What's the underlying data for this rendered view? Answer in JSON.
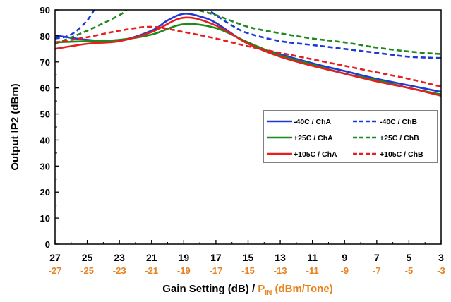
{
  "chart_data": {
    "type": "line",
    "title": "",
    "ylabel": "Output IP2 (dBm)",
    "xlabel": {
      "main": "Gain Setting (dB) / ",
      "sub_label_prefix": "P",
      "sub_label_subscript": "IN",
      "sub_label_suffix": " (dBm/Tone)"
    },
    "x_reversed": true,
    "xlim": [
      3,
      27
    ],
    "ylim": [
      0,
      90
    ],
    "x_ticks": [
      27,
      25,
      23,
      21,
      19,
      17,
      15,
      13,
      11,
      9,
      7,
      5,
      3
    ],
    "x_tick_labels": [
      "27",
      "25",
      "23",
      "21",
      "19",
      "17",
      "15",
      "13",
      "11",
      "9",
      "7",
      "5",
      "3"
    ],
    "x_secondary_tick_labels": [
      "-27",
      "-25",
      "-23",
      "-21",
      "-19",
      "-17",
      "-15",
      "-13",
      "-11",
      "-9",
      "-7",
      "-5",
      "-3"
    ],
    "y_ticks": [
      0,
      10,
      20,
      30,
      40,
      50,
      60,
      70,
      80,
      90
    ],
    "y_tick_labels": [
      "0",
      "10",
      "20",
      "30",
      "40",
      "50",
      "60",
      "70",
      "80",
      "90"
    ],
    "grid": false,
    "legend_position": "right-middle",
    "colors": {
      "secondary_axis_text": "#e8821e",
      "blue": "#1e3ad6",
      "green": "#1e8a1e",
      "red": "#e61e1e"
    },
    "series": [
      {
        "name": "-40C / ChA",
        "color": "#1e3ad6",
        "dash": false,
        "x": [
          27,
          25,
          23,
          21,
          20,
          19,
          18,
          17,
          15,
          13,
          11,
          9,
          7,
          5,
          3
        ],
        "y": [
          80.2,
          78.5,
          78.2,
          82,
          86,
          88.5,
          87.5,
          85,
          77,
          73,
          69.5,
          66.5,
          63.5,
          61,
          58.5
        ]
      },
      {
        "name": "-40C / ChB",
        "color": "#1e3ad6",
        "dash": true,
        "x": [
          27,
          26,
          25,
          24.3
        ],
        "y": [
          79,
          80.5,
          86,
          93
        ]
      },
      {
        "name": "-40C / ChB",
        "color": "#1e3ad6",
        "dash": true,
        "x": [
          17.7,
          17,
          16,
          15,
          13,
          11,
          9,
          7,
          5,
          3
        ],
        "y": [
          91,
          88,
          84,
          81,
          78,
          76.5,
          75,
          73.5,
          72,
          71.5
        ]
      },
      {
        "name": "+25C / ChA",
        "color": "#1e8a1e",
        "dash": false,
        "x": [
          27,
          25,
          23,
          21,
          19,
          17,
          15,
          13,
          11,
          9,
          7,
          5,
          3
        ],
        "y": [
          77.5,
          78,
          78.5,
          80.5,
          84.5,
          83,
          77.5,
          72.5,
          69,
          65.5,
          63,
          60,
          57.5
        ]
      },
      {
        "name": "+25C / ChB",
        "color": "#1e8a1e",
        "dash": true,
        "x": [
          27,
          25,
          23,
          22.5
        ],
        "y": [
          77,
          82,
          88,
          90.5
        ]
      },
      {
        "name": "+25C / ChB",
        "color": "#1e8a1e",
        "dash": true,
        "x": [
          18.5,
          17,
          15,
          13,
          11,
          9,
          7,
          5,
          3
        ],
        "y": [
          90.5,
          88,
          83.5,
          81,
          79,
          77.5,
          75.5,
          74,
          73
        ]
      },
      {
        "name": "+105C / ChA",
        "color": "#e61e1e",
        "dash": false,
        "x": [
          27,
          25,
          23,
          21,
          19,
          17,
          15,
          13,
          11,
          9,
          7,
          5,
          3
        ],
        "y": [
          75,
          77,
          78,
          81.5,
          87,
          84,
          77,
          72,
          68.5,
          65.5,
          62.5,
          60,
          57
        ]
      },
      {
        "name": "+105C / ChB",
        "color": "#e61e1e",
        "dash": true,
        "x": [
          27,
          25,
          23,
          21,
          19,
          17,
          15,
          13,
          11,
          9,
          7,
          5,
          3
        ],
        "y": [
          77.5,
          79.5,
          82,
          83.5,
          81.5,
          79,
          76,
          73.5,
          71,
          68.5,
          66,
          63.5,
          60.5
        ]
      }
    ],
    "legend": [
      {
        "label": "-40C / ChA",
        "color": "#1e3ad6",
        "dash": false
      },
      {
        "label": "-40C / ChB",
        "color": "#1e3ad6",
        "dash": true
      },
      {
        "label": "+25C / ChA",
        "color": "#1e8a1e",
        "dash": false
      },
      {
        "label": "+25C / ChB",
        "color": "#1e8a1e",
        "dash": true
      },
      {
        "label": "+105C / ChA",
        "color": "#e61e1e",
        "dash": false
      },
      {
        "label": "+105C / ChB",
        "color": "#e61e1e",
        "dash": true
      }
    ]
  }
}
